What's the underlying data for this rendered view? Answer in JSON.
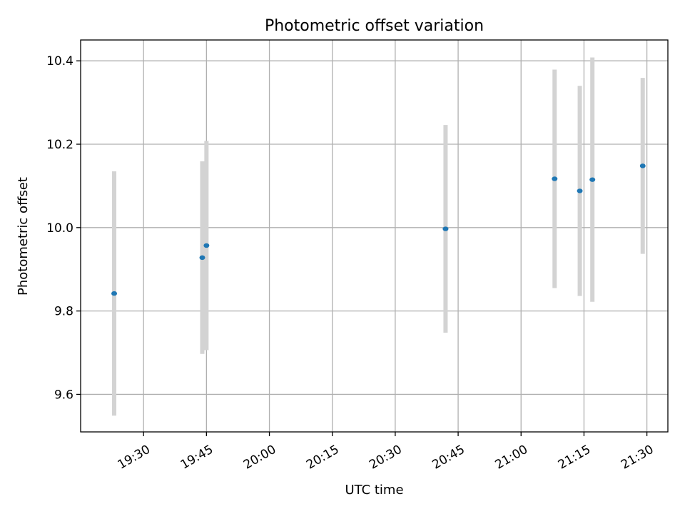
{
  "chart_data": {
    "type": "scatter",
    "title": "Photometric offset variation",
    "xlabel": "UTC time",
    "ylabel": "Photometric offset",
    "xlim": [
      "19:15",
      "21:35"
    ],
    "ylim": [
      9.51,
      10.45
    ],
    "x_ticks": [
      "19:30",
      "19:45",
      "20:00",
      "20:15",
      "20:30",
      "20:45",
      "21:00",
      "21:15",
      "21:30"
    ],
    "y_ticks": [
      9.6,
      9.8,
      10.0,
      10.2,
      10.4
    ],
    "y_tick_labels": [
      "9.6",
      "9.8",
      "10.0",
      "10.2",
      "10.4"
    ],
    "grid": true,
    "series": [
      {
        "marker_color": "#1f77b4",
        "errorbar_color": "#d3d3d3",
        "points": [
          {
            "x": "19:23",
            "y": 9.842,
            "err": 0.293
          },
          {
            "x": "19:44",
            "y": 9.928,
            "err": 0.231
          },
          {
            "x": "19:45",
            "y": 9.957,
            "err": 0.251
          },
          {
            "x": "20:42",
            "y": 9.997,
            "err": 0.249
          },
          {
            "x": "21:08",
            "y": 10.117,
            "err": 0.262
          },
          {
            "x": "21:14",
            "y": 10.088,
            "err": 0.252
          },
          {
            "x": "21:17",
            "y": 10.115,
            "err": 0.293
          },
          {
            "x": "21:29",
            "y": 10.148,
            "err": 0.211
          }
        ]
      }
    ]
  }
}
